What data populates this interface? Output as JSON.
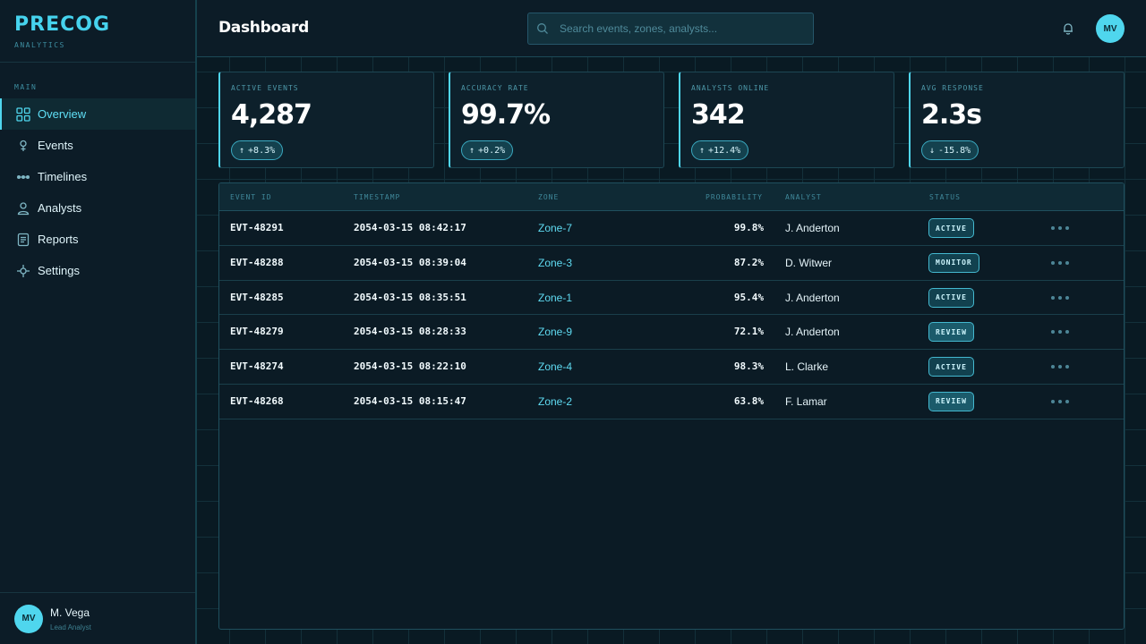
{
  "brand": {
    "name": "PRECOG",
    "sub": "ANALYTICS"
  },
  "sidebar": {
    "section": "MAIN",
    "items": [
      {
        "label": "Overview",
        "icon": "grid-icon",
        "active": true
      },
      {
        "label": "Events",
        "icon": "pin-icon"
      },
      {
        "label": "Timelines",
        "icon": "timeline-icon"
      },
      {
        "label": "Analysts",
        "icon": "user-icon"
      },
      {
        "label": "Reports",
        "icon": "document-icon"
      },
      {
        "label": "Settings",
        "icon": "crosshair-icon"
      }
    ],
    "user": {
      "initials": "MV",
      "name": "M. Vega",
      "role": "Lead Analyst"
    }
  },
  "header": {
    "title": "Dashboard",
    "search_placeholder": "Search events, zones, analysts...",
    "avatar_initials": "MV"
  },
  "cards": [
    {
      "label": "ACTIVE EVENTS",
      "value": "4,287",
      "arrow": "↑",
      "delta": "+8.3%"
    },
    {
      "label": "ACCURACY RATE",
      "value": "99.7%",
      "arrow": "↑",
      "delta": "+0.2%"
    },
    {
      "label": "ANALYSTS ONLINE",
      "value": "342",
      "arrow": "↑",
      "delta": "+12.4%"
    },
    {
      "label": "AVG RESPONSE",
      "value": "2.3s",
      "arrow": "↓",
      "delta": "-15.8%"
    }
  ],
  "table": {
    "headers": [
      "EVENT ID",
      "TIMESTAMP",
      "ZONE",
      "PROBABILITY",
      "ANALYST",
      "STATUS"
    ],
    "rows": [
      {
        "id": "EVT-48291",
        "timestamp": "2054-03-15 08:42:17",
        "zone": "Zone-7",
        "probability": "99.8%",
        "analyst": "J. Anderton",
        "status": "ACTIVE"
      },
      {
        "id": "EVT-48288",
        "timestamp": "2054-03-15 08:39:04",
        "zone": "Zone-3",
        "probability": "87.2%",
        "analyst": "D. Witwer",
        "status": "MONITOR"
      },
      {
        "id": "EVT-48285",
        "timestamp": "2054-03-15 08:35:51",
        "zone": "Zone-1",
        "probability": "95.4%",
        "analyst": "J. Anderton",
        "status": "ACTIVE"
      },
      {
        "id": "EVT-48279",
        "timestamp": "2054-03-15 08:28:33",
        "zone": "Zone-9",
        "probability": "72.1%",
        "analyst": "J. Anderton",
        "status": "REVIEW"
      },
      {
        "id": "EVT-48274",
        "timestamp": "2054-03-15 08:22:10",
        "zone": "Zone-4",
        "probability": "98.3%",
        "analyst": "L. Clarke",
        "status": "ACTIVE"
      },
      {
        "id": "EVT-48268",
        "timestamp": "2054-03-15 08:15:47",
        "zone": "Zone-2",
        "probability": "63.8%",
        "analyst": "F. Lamar",
        "status": "REVIEW"
      }
    ]
  },
  "colors": {
    "accent": "#4fd6ee",
    "background": "#0a1a24",
    "panel": "#0c1c27"
  }
}
